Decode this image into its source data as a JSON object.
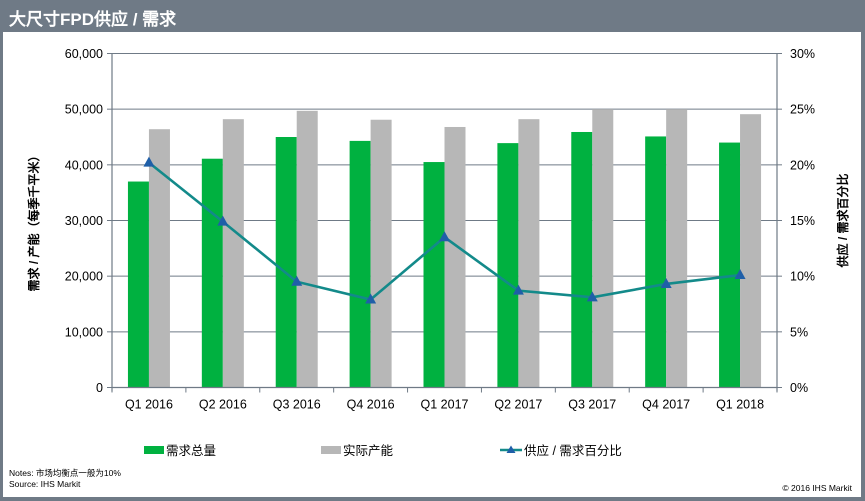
{
  "header": {
    "title": "大尺寸FPD供应 / 需求"
  },
  "chart_data": {
    "type": "bar",
    "title": "大尺寸FPD供应 / 需求",
    "categories": [
      "Q1 2016",
      "Q2 2016",
      "Q3 2016",
      "Q4 2016",
      "Q1 2017",
      "Q2 2017",
      "Q3 2017",
      "Q4 2017",
      "Q1 2018"
    ],
    "series": [
      {
        "name": "需求总量",
        "type": "bar",
        "axis": "left",
        "color": "#00b140",
        "values": [
          37000,
          41100,
          45000,
          44300,
          40500,
          43900,
          45900,
          45100,
          44000
        ]
      },
      {
        "name": "实际产能",
        "type": "bar",
        "axis": "left",
        "color": "#b7b7b7",
        "values": [
          46400,
          48200,
          49700,
          48100,
          46800,
          48200,
          50000,
          50000,
          49100
        ]
      },
      {
        "name": "供应 / 需求百分比",
        "type": "line",
        "axis": "right",
        "color": "#138a8a",
        "marker_color": "#1f5fa8",
        "values": [
          20.2,
          14.9,
          9.5,
          7.9,
          13.5,
          8.7,
          8.1,
          9.3,
          10.1
        ]
      }
    ],
    "ylabel": "需求 / 产能（每季千平米）",
    "ylabel_right": "供应 / 需求百分比",
    "xlabel": "",
    "ylim": [
      0,
      60000
    ],
    "ylim_right": [
      0,
      30
    ],
    "yticks": [
      "0",
      "10,000",
      "20,000",
      "30,000",
      "40,000",
      "50,000",
      "60,000"
    ],
    "yticks_right": [
      "0%",
      "5%",
      "10%",
      "15%",
      "20%",
      "25%",
      "30%"
    ],
    "grid": true,
    "legend_position": "bottom"
  },
  "legend": {
    "items": [
      {
        "label": "需求总量",
        "color": "#00b140"
      },
      {
        "label": "实际产能",
        "color": "#b7b7b7"
      },
      {
        "label": "供应 / 需求百分比",
        "color": "#138a8a"
      }
    ]
  },
  "footer": {
    "notes": "Notes: 市场均衡点一般为10%",
    "source": "Source: IHS Markit",
    "copyright": "© 2016 IHS Markit"
  }
}
